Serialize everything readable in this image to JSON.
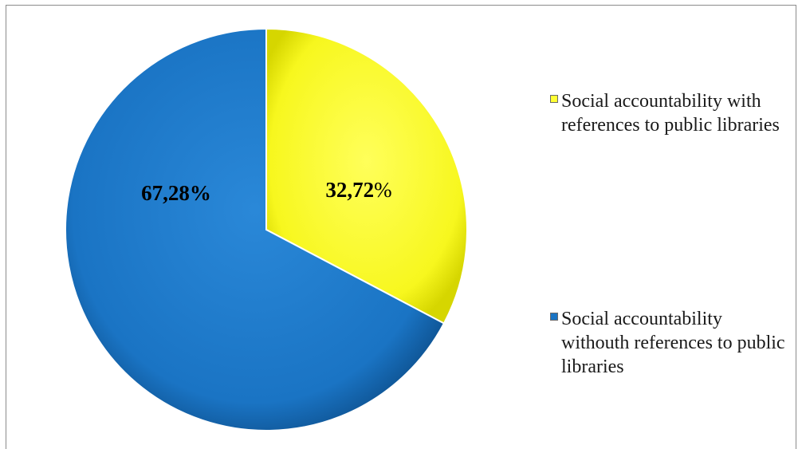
{
  "chart_data": {
    "type": "pie",
    "slices": [
      {
        "label": "Social accountability with references to public libraries",
        "value": 32.72,
        "display": "32,72%",
        "color": "#ffff33"
      },
      {
        "label": "Social accountability withouth references to public libraries",
        "value": 67.28,
        "display": "67,28%",
        "color": "#1a74c4"
      }
    ],
    "legend_position": "right"
  }
}
